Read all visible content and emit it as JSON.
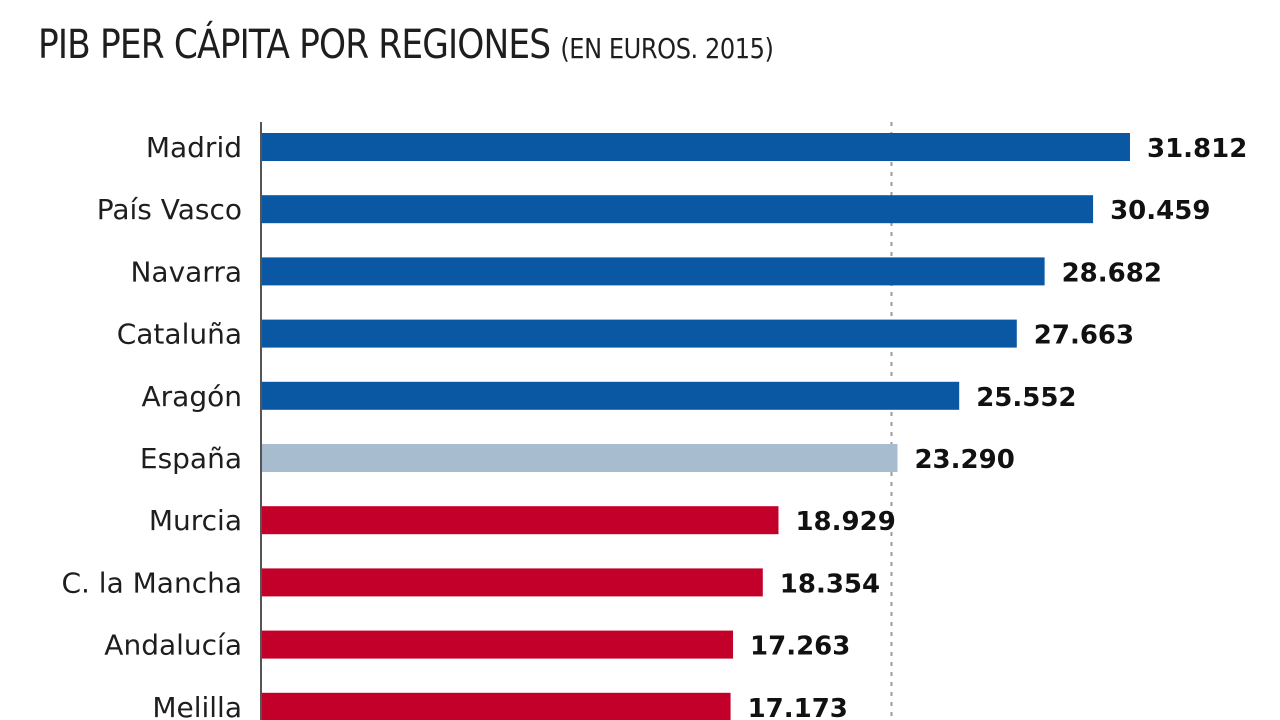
{
  "chart_data": {
    "type": "bar",
    "orientation": "horizontal",
    "title": "PIB PER CÁPITA POR REGIONES",
    "subtitle": "(EN EUROS. 2015)",
    "xlabel": "",
    "ylabel": "",
    "categories": [
      "Madrid",
      "País Vasco",
      "Navarra",
      "Cataluña",
      "Aragón",
      "España",
      "Murcia",
      "C. la Mancha",
      "Andalucía",
      "Melilla"
    ],
    "values": [
      31812,
      30459,
      28682,
      27663,
      25552,
      23290,
      18929,
      18354,
      17263,
      17173
    ],
    "value_labels": [
      "31.812",
      "30.459",
      "28.682",
      "27.663",
      "25.552",
      "23.290",
      "18.929",
      "18.354",
      "17.263",
      "17.173"
    ],
    "groups": [
      "above",
      "above",
      "above",
      "above",
      "above",
      "average",
      "below",
      "below",
      "below",
      "below"
    ],
    "reference_line": {
      "value": 23290,
      "style": "dashed",
      "label": "España"
    },
    "xlim": [
      0,
      32000
    ],
    "grid": false,
    "colors": {
      "above": "#0a57a4",
      "average": "#a7bccf",
      "below": "#c3002a",
      "axis": "#555555",
      "refline": "#9a9a9a"
    }
  }
}
